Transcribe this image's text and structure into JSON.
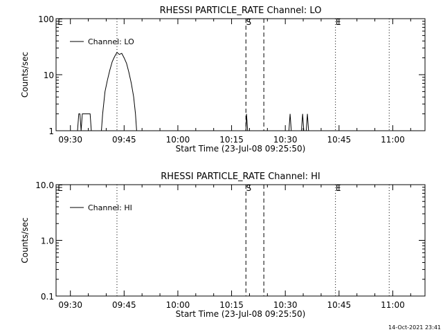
{
  "footer": {
    "timestamp": "14-Oct-2021 23:41"
  },
  "chart_data": [
    {
      "type": "line",
      "title": "RHESSI PARTICLE_RATE Channel: LO",
      "xlabel": "Start Time (23-Jul-08 09:25:50)",
      "ylabel": "Counts/sec",
      "x_unit": "minutes",
      "xlim": [
        "09:26",
        "11:09"
      ],
      "ylim": [
        1,
        100
      ],
      "yscale": "log",
      "x_ticks": [
        "09:30",
        "09:45",
        "10:00",
        "10:15",
        "10:30",
        "10:45",
        "11:00"
      ],
      "y_ticks": [
        {
          "label": "1",
          "value": 1
        },
        {
          "label": "10",
          "value": 10
        },
        {
          "label": "100",
          "value": 100
        }
      ],
      "legend": {
        "label": "Channel: LO",
        "position": "top-left"
      },
      "markers": [
        {
          "time": "09:43",
          "label": "",
          "style": "dotted"
        },
        {
          "time": "10:19",
          "label": "S",
          "style": "dashed"
        },
        {
          "time": "10:24",
          "label": "",
          "style": "dashed"
        },
        {
          "time": "10:44",
          "label": "E",
          "style": "dotted"
        },
        {
          "time": "10:59",
          "label": "",
          "style": "dotted"
        }
      ],
      "corner_label": "E",
      "series": [
        {
          "points": [
            [
              "09:32:00",
              1
            ],
            [
              "09:32:20",
              2
            ],
            [
              "09:32:40",
              2
            ],
            [
              "09:33:00",
              1
            ],
            [
              "09:33:20",
              2
            ],
            [
              "09:35:30",
              2
            ],
            [
              "09:35:50",
              1
            ],
            [
              "09:38:40",
              1
            ],
            [
              "09:39:00",
              2
            ],
            [
              "09:39:40",
              5
            ],
            [
              "09:40:20",
              8
            ],
            [
              "09:41:00",
              12
            ],
            [
              "09:41:40",
              17
            ],
            [
              "09:42:20",
              21
            ],
            [
              "09:43:00",
              25
            ],
            [
              "09:43:40",
              23
            ],
            [
              "09:44:20",
              24
            ],
            [
              "09:45:00",
              20
            ],
            [
              "09:45:40",
              16
            ],
            [
              "09:46:20",
              11
            ],
            [
              "09:47:00",
              7
            ],
            [
              "09:47:40",
              4
            ],
            [
              "09:48:10",
              2
            ],
            [
              "09:48:30",
              1
            ],
            [
              "10:19:00",
              1
            ],
            [
              "10:19:10",
              2
            ],
            [
              "10:19:30",
              1
            ],
            [
              "10:31:00",
              1
            ],
            [
              "10:31:20",
              2
            ],
            [
              "10:31:40",
              1
            ],
            [
              "10:34:30",
              1
            ],
            [
              "10:34:50",
              2
            ],
            [
              "10:35:10",
              1
            ],
            [
              "10:35:50",
              1
            ],
            [
              "10:36:10",
              2
            ],
            [
              "10:36:30",
              1
            ]
          ]
        }
      ]
    },
    {
      "type": "line",
      "title": "RHESSI PARTICLE_RATE Channel: HI",
      "xlabel": "Start Time (23-Jul-08 09:25:50)",
      "ylabel": "Counts/sec",
      "x_unit": "minutes",
      "xlim": [
        "09:26",
        "11:09"
      ],
      "ylim": [
        0.1,
        10
      ],
      "yscale": "log",
      "x_ticks": [
        "09:30",
        "09:45",
        "10:00",
        "10:15",
        "10:30",
        "10:45",
        "11:00"
      ],
      "y_ticks": [
        {
          "label": "0.1",
          "value": 0.1
        },
        {
          "label": "1.0",
          "value": 1
        },
        {
          "label": "10.0",
          "value": 10
        }
      ],
      "legend": {
        "label": "Channel: HI",
        "position": "top-left"
      },
      "markers": [
        {
          "time": "09:43",
          "label": "",
          "style": "dotted"
        },
        {
          "time": "10:19",
          "label": "S",
          "style": "dashed"
        },
        {
          "time": "10:24",
          "label": "",
          "style": "dashed"
        },
        {
          "time": "10:44",
          "label": "E",
          "style": "dotted"
        },
        {
          "time": "10:59",
          "label": "",
          "style": "dotted"
        }
      ],
      "corner_label": "E",
      "series": [
        {
          "points": []
        }
      ]
    }
  ]
}
